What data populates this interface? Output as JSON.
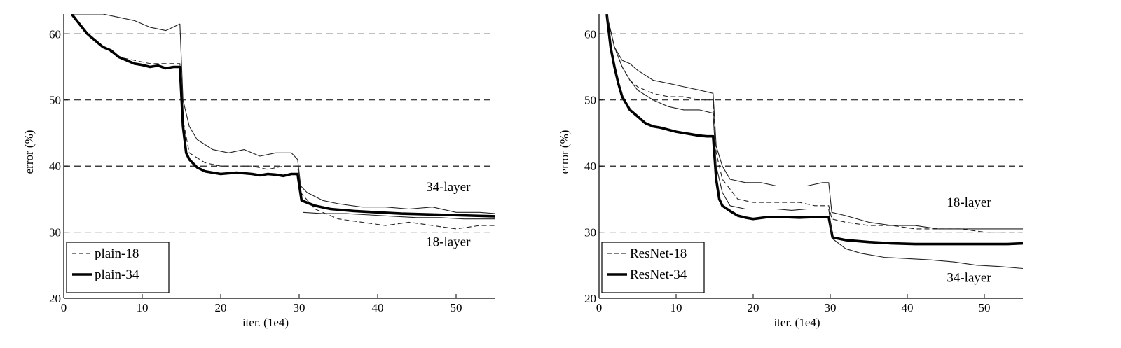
{
  "chart_data": [
    {
      "type": "line",
      "xlabel": "iter. (1e4)",
      "ylabel": "error (%)",
      "xlim": [
        0,
        55
      ],
      "ylim": [
        20,
        63
      ],
      "xticks": [
        0,
        10,
        20,
        30,
        40,
        50
      ],
      "yticks": [
        20,
        30,
        40,
        50,
        60
      ],
      "grid": "horizontal dashed at 30, 40, 50, 60",
      "legend_position": "bottom-left",
      "annotations": [
        {
          "text": "34-layer",
          "x": 49,
          "y": 36.2
        },
        {
          "text": "18-layer",
          "x": 49,
          "y": 27.9
        }
      ],
      "series": [
        {
          "name": "plain-18",
          "role": "train",
          "style": "thin dashed",
          "x": [
            1,
            3,
            5,
            7,
            9,
            11,
            13,
            14.8,
            15.2,
            16,
            18,
            20,
            22,
            24,
            26,
            28,
            29.8,
            30.2,
            32,
            35,
            38,
            41,
            44,
            47,
            50,
            53,
            55
          ],
          "y": [
            63,
            60,
            58,
            56.5,
            56,
            55.5,
            55.5,
            55.5,
            47,
            42,
            40.5,
            40,
            40,
            40,
            39.5,
            40,
            40,
            36,
            33.5,
            32,
            31.5,
            31,
            31.5,
            31,
            30.5,
            31,
            31
          ]
        },
        {
          "name": "plain-34",
          "role": "train",
          "style": "thick solid",
          "x": [
            1,
            2,
            3,
            4,
            5,
            6,
            7,
            8,
            9,
            10,
            11,
            12,
            13,
            14,
            14.8,
            15.2,
            15.6,
            16,
            17,
            18,
            19,
            20,
            21,
            22,
            23,
            24,
            25,
            26,
            27,
            28,
            29,
            29.8,
            30.3,
            32,
            34,
            37,
            40,
            43,
            46,
            49,
            52,
            55
          ],
          "y": [
            63,
            61.5,
            60,
            59,
            58,
            57.5,
            56.5,
            56,
            55.5,
            55.3,
            55,
            55.2,
            54.8,
            55,
            55,
            46,
            42,
            41,
            39.8,
            39.2,
            39,
            38.8,
            38.9,
            39,
            38.9,
            38.8,
            38.6,
            38.8,
            38.7,
            38.5,
            38.8,
            38.8,
            34.8,
            34,
            33.5,
            33.2,
            33,
            32.8,
            32.7,
            32.6,
            32.5,
            32.4
          ]
        },
        {
          "name": "plain-18 val",
          "role": "val",
          "style": "thin solid",
          "x": [
            1,
            3,
            5,
            7,
            9,
            11,
            13,
            14.8,
            15.2,
            16,
            17,
            19,
            21,
            23,
            25,
            27,
            29,
            29.8,
            30.2,
            31,
            33,
            35,
            38,
            41,
            44,
            47,
            50,
            53,
            55
          ],
          "y": [
            63,
            63,
            63,
            62.5,
            62,
            61,
            60.5,
            61.5,
            50,
            46,
            44,
            42.5,
            42,
            42.5,
            41.5,
            42,
            42,
            41,
            37,
            36,
            34.8,
            34.3,
            33.8,
            33.8,
            33.5,
            33.8,
            33,
            33,
            32.8
          ]
        },
        {
          "name": "plain-34 val",
          "role": "val",
          "style": "thin solid",
          "x": [
            30.5,
            33,
            36,
            39,
            42,
            45,
            48,
            51,
            55
          ],
          "y": [
            33,
            32.8,
            32.8,
            32.6,
            32.4,
            32.2,
            32.2,
            32,
            32
          ]
        }
      ],
      "legend": [
        "plain-18",
        "plain-34"
      ]
    },
    {
      "type": "line",
      "xlabel": "iter. (1e4)",
      "ylabel": "error (%)",
      "xlim": [
        0,
        55
      ],
      "ylim": [
        20,
        63
      ],
      "xticks": [
        0,
        10,
        20,
        30,
        40,
        50
      ],
      "yticks": [
        20,
        30,
        40,
        50,
        60
      ],
      "grid": "horizontal dashed at 30, 40, 50, 60",
      "legend_position": "bottom-left",
      "annotations": [
        {
          "text": "18-layer",
          "x": 48,
          "y": 33.9
        },
        {
          "text": "34-layer",
          "x": 48,
          "y": 22.5
        }
      ],
      "series": [
        {
          "name": "ResNet-18",
          "role": "train",
          "style": "thin dashed",
          "x": [
            1,
            2,
            3,
            4,
            5,
            7,
            9,
            11,
            13,
            14.8,
            15.2,
            16,
            18,
            20,
            22,
            24,
            26,
            28,
            29.8,
            30.2,
            32,
            35,
            38,
            41,
            44,
            47,
            50,
            53,
            55
          ],
          "y": [
            63,
            58,
            55,
            53,
            52,
            51,
            50.5,
            50.5,
            50,
            50,
            42,
            38,
            35,
            34.5,
            34.5,
            34.5,
            34.5,
            34,
            34,
            32,
            31.5,
            31,
            31,
            30.5,
            30.5,
            30.5,
            30,
            30,
            30
          ]
        },
        {
          "name": "ResNet-34",
          "role": "train",
          "style": "thick solid",
          "x": [
            1,
            1.5,
            2,
            2.5,
            3,
            4,
            5,
            6,
            7,
            8,
            9,
            10,
            11,
            12,
            13,
            14,
            14.8,
            15.2,
            15.6,
            16,
            17,
            18,
            19,
            20,
            22,
            24,
            26,
            28,
            29.8,
            30.3,
            32,
            35,
            38,
            41,
            44,
            47,
            50,
            53,
            55
          ],
          "y": [
            63,
            58,
            55,
            52.5,
            50.5,
            48.5,
            47.5,
            46.5,
            46,
            45.8,
            45.5,
            45.2,
            45,
            44.8,
            44.6,
            44.5,
            44.5,
            38,
            35,
            34,
            33.2,
            32.5,
            32.2,
            32,
            32.3,
            32.3,
            32.2,
            32.3,
            32.3,
            29.2,
            28.8,
            28.5,
            28.3,
            28.2,
            28.2,
            28.2,
            28.2,
            28.2,
            28.3
          ]
        },
        {
          "name": "ResNet-18 val",
          "role": "val",
          "style": "thin solid",
          "x": [
            1,
            2,
            3,
            4,
            5,
            7,
            9,
            11,
            13,
            14.8,
            15.2,
            16,
            17,
            19,
            21,
            23,
            25,
            27,
            29,
            29.8,
            30.2,
            32,
            35,
            38,
            41,
            44,
            47,
            50,
            53,
            55
          ],
          "y": [
            63,
            58,
            56,
            55.5,
            54.5,
            53,
            52.5,
            52,
            51.5,
            51,
            43,
            40,
            38,
            37.5,
            37.5,
            37,
            37,
            37,
            37.5,
            37.5,
            33,
            32.5,
            31.5,
            31,
            31,
            30.5,
            30.5,
            30.5,
            30.5,
            30.5
          ]
        },
        {
          "name": "ResNet-34 val",
          "role": "val",
          "style": "thin solid",
          "x": [
            1,
            2,
            3,
            4,
            5,
            7,
            9,
            11,
            13,
            14.8,
            15.2,
            16,
            17,
            19,
            21,
            23,
            25,
            27,
            29,
            29.8,
            30.3,
            32,
            34,
            37,
            40,
            43,
            46,
            49,
            52,
            55
          ],
          "y": [
            63,
            58,
            55,
            53,
            51.5,
            50,
            49,
            48.5,
            48.5,
            48,
            40,
            36,
            34,
            33.5,
            33.5,
            33.5,
            33.3,
            33.5,
            33.5,
            33.5,
            29,
            27.5,
            26.8,
            26.2,
            26,
            25.8,
            25.5,
            25,
            24.8,
            24.5
          ]
        }
      ],
      "legend": [
        "ResNet-18",
        "ResNet-34"
      ]
    }
  ]
}
